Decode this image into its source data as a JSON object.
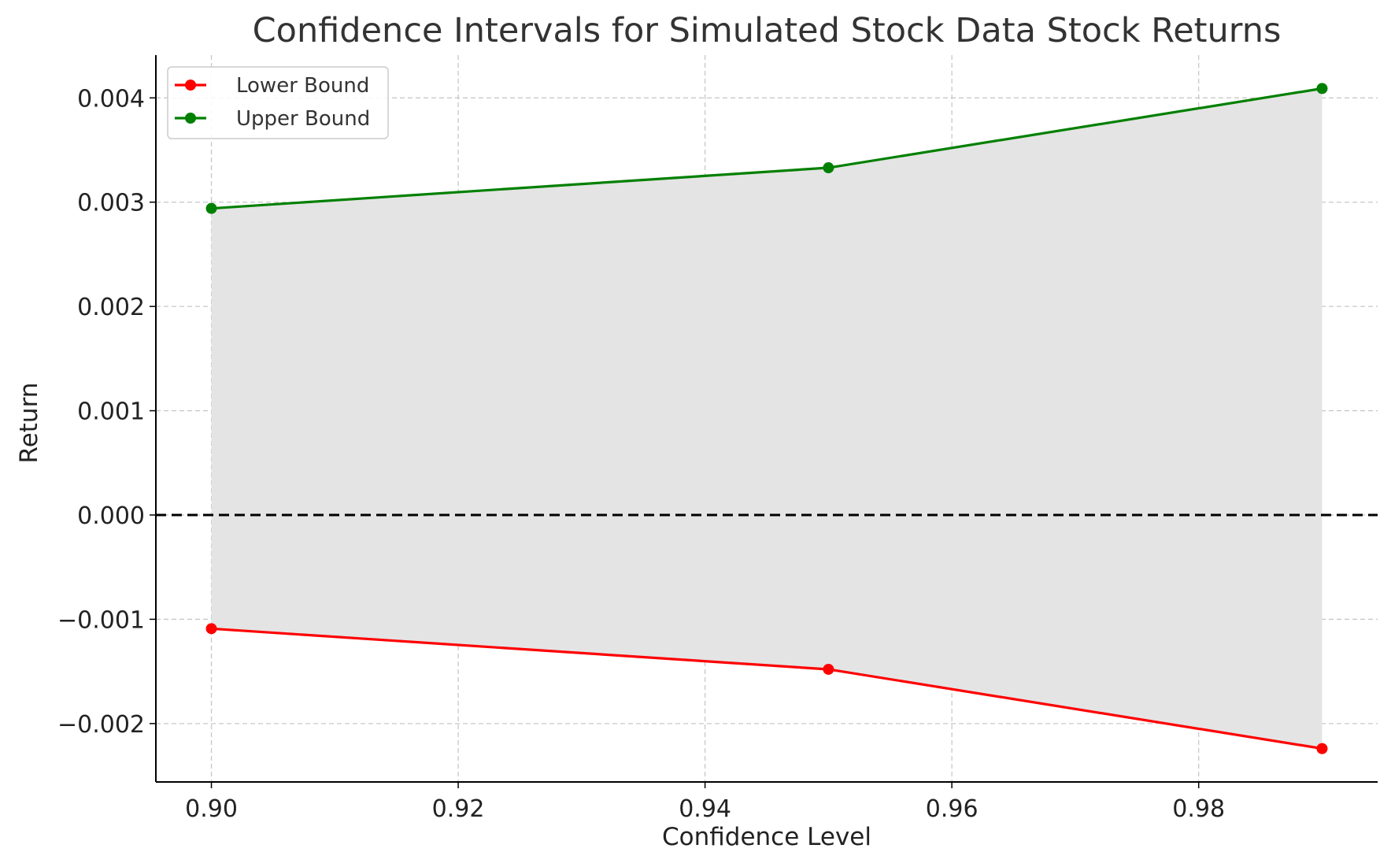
{
  "chart_data": {
    "type": "line",
    "title": "Confidence Intervals for Simulated Stock Data Stock Returns",
    "xlabel": "Confidence Level",
    "ylabel": "Return",
    "x": [
      0.9,
      0.95,
      0.99
    ],
    "series": [
      {
        "name": "Lower Bound",
        "color": "#ff0000",
        "values": [
          -0.00109,
          -0.00148,
          -0.00224
        ]
      },
      {
        "name": "Upper Bound",
        "color": "#008000",
        "values": [
          0.00294,
          0.00333,
          0.00409
        ]
      }
    ],
    "fill_between": {
      "lower": "Lower Bound",
      "upper": "Upper Bound",
      "color": "#e4e4e4"
    },
    "reference_line": {
      "y": 0,
      "style": "dashed",
      "color": "#000000"
    },
    "xlim": [
      0.8955,
      0.9945
    ],
    "ylim": [
      -0.00256,
      0.00441
    ],
    "xticks": [
      0.9,
      0.92,
      0.94,
      0.96,
      0.98
    ],
    "xtick_labels": [
      "0.90",
      "0.92",
      "0.94",
      "0.96",
      "0.98"
    ],
    "yticks": [
      -0.002,
      -0.001,
      0.0,
      0.001,
      0.002,
      0.003,
      0.004
    ],
    "ytick_labels": [
      "−0.002",
      "−0.001",
      "0.000",
      "0.001",
      "0.002",
      "0.003",
      "0.004"
    ],
    "grid": true,
    "legend_position": "top-left"
  }
}
